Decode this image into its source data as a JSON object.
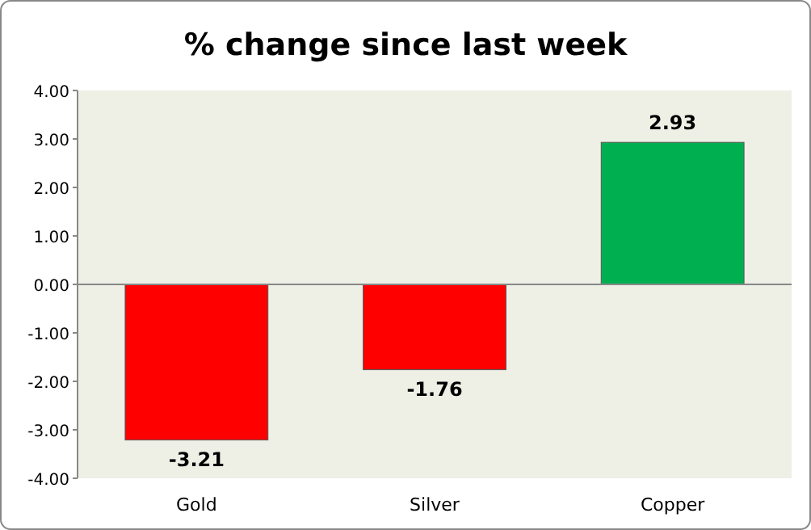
{
  "chart_data": {
    "type": "bar",
    "title": "% change since last week",
    "categories": [
      "Gold",
      "Silver",
      "Copper"
    ],
    "values": [
      -3.21,
      -1.76,
      2.93
    ],
    "colors": [
      "#ff0000",
      "#ff0000",
      "#00b050"
    ],
    "data_labels": true,
    "ylim": [
      -4,
      4
    ],
    "yticks": [
      {
        "value": -4,
        "label": "-4.00"
      },
      {
        "value": -3,
        "label": "-3.00"
      },
      {
        "value": -2,
        "label": "-2.00"
      },
      {
        "value": -1,
        "label": "-1.00"
      },
      {
        "value": 0,
        "label": "0.00"
      },
      {
        "value": 1,
        "label": "1.00"
      },
      {
        "value": 2,
        "label": "2.00"
      },
      {
        "value": 3,
        "label": "3.00"
      },
      {
        "value": 4,
        "label": "4.00"
      }
    ]
  }
}
